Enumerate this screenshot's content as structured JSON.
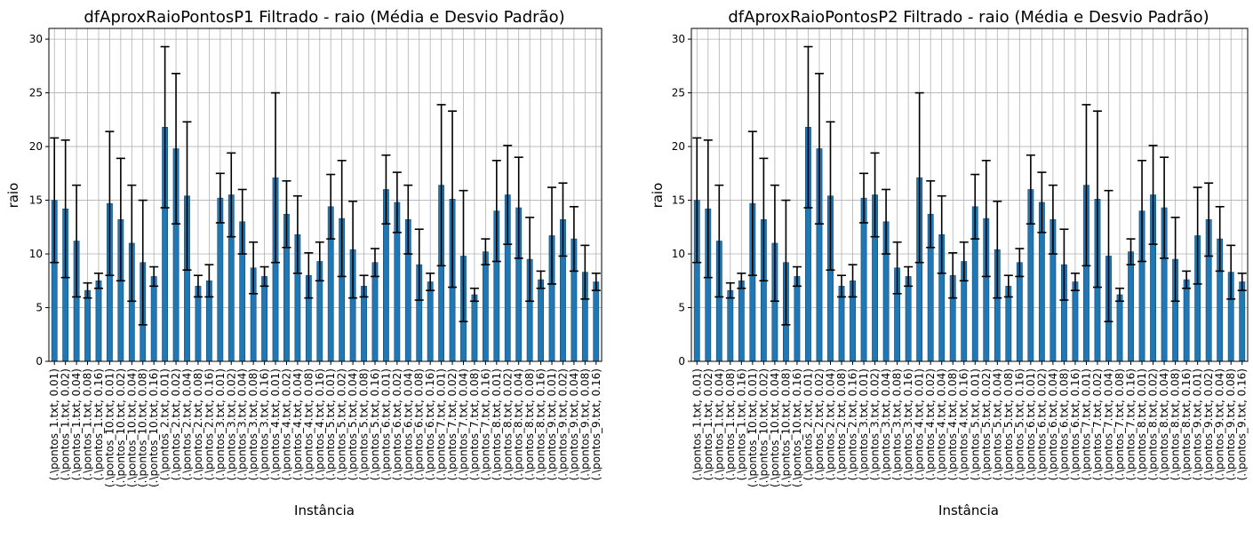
{
  "chart_data": [
    {
      "type": "bar",
      "title": "dfAproxRaioPontosP1 Filtrado - raio (Média e Desvio Padrão)",
      "xlabel": "Instância",
      "ylabel": "raio",
      "ylim": [
        0,
        31
      ],
      "yticks": [
        0,
        5,
        10,
        15,
        20,
        25,
        30
      ],
      "grid": true,
      "error_bars": true,
      "bar_color": "#1f77b4",
      "categories": [
        "(.\\pontos_1.txt, 0.01)",
        "(.\\pontos_1.txt, 0.02)",
        "(.\\pontos_1.txt, 0.04)",
        "(.\\pontos_1.txt, 0.08)",
        "(.\\pontos_1.txt, 0.16)",
        "(.\\pontos_10.txt, 0.01)",
        "(.\\pontos_10.txt, 0.02)",
        "(.\\pontos_10.txt, 0.04)",
        "(.\\pontos_10.txt, 0.08)",
        "(.\\pontos_10.txt, 0.16)",
        "(.\\pontos_2.txt, 0.01)",
        "(.\\pontos_2.txt, 0.02)",
        "(.\\pontos_2.txt, 0.04)",
        "(.\\pontos_2.txt, 0.08)",
        "(.\\pontos_2.txt, 0.16)",
        "(.\\pontos_3.txt, 0.01)",
        "(.\\pontos_3.txt, 0.02)",
        "(.\\pontos_3.txt, 0.04)",
        "(.\\pontos_3.txt, 0.08)",
        "(.\\pontos_3.txt, 0.16)",
        "(.\\pontos_4.txt, 0.01)",
        "(.\\pontos_4.txt, 0.02)",
        "(.\\pontos_4.txt, 0.04)",
        "(.\\pontos_4.txt, 0.08)",
        "(.\\pontos_4.txt, 0.16)",
        "(.\\pontos_5.txt, 0.01)",
        "(.\\pontos_5.txt, 0.02)",
        "(.\\pontos_5.txt, 0.04)",
        "(.\\pontos_5.txt, 0.08)",
        "(.\\pontos_5.txt, 0.16)",
        "(.\\pontos_6.txt, 0.01)",
        "(.\\pontos_6.txt, 0.02)",
        "(.\\pontos_6.txt, 0.04)",
        "(.\\pontos_6.txt, 0.08)",
        "(.\\pontos_6.txt, 0.16)",
        "(.\\pontos_7.txt, 0.01)",
        "(.\\pontos_7.txt, 0.02)",
        "(.\\pontos_7.txt, 0.04)",
        "(.\\pontos_7.txt, 0.08)",
        "(.\\pontos_7.txt, 0.16)",
        "(.\\pontos_8.txt, 0.01)",
        "(.\\pontos_8.txt, 0.02)",
        "(.\\pontos_8.txt, 0.04)",
        "(.\\pontos_8.txt, 0.08)",
        "(.\\pontos_8.txt, 0.16)",
        "(.\\pontos_9.txt, 0.01)",
        "(.\\pontos_9.txt, 0.02)",
        "(.\\pontos_9.txt, 0.04)",
        "(.\\pontos_9.txt, 0.08)",
        "(.\\pontos_9.txt, 0.16)"
      ],
      "values": [
        15.0,
        14.2,
        11.2,
        6.6,
        7.5,
        14.7,
        13.2,
        11.0,
        9.2,
        7.9,
        21.8,
        19.8,
        15.4,
        7.0,
        7.5,
        15.2,
        15.5,
        13.0,
        8.7,
        7.9,
        17.1,
        13.7,
        11.8,
        8.0,
        9.3,
        14.4,
        13.3,
        10.4,
        7.0,
        9.2,
        16.0,
        14.8,
        13.2,
        9.0,
        7.4,
        16.4,
        15.1,
        9.8,
        6.2,
        10.2,
        14.0,
        15.5,
        14.3,
        9.5,
        7.6,
        11.7,
        13.2,
        11.4,
        8.3,
        7.4
      ],
      "errors": [
        5.8,
        6.4,
        5.2,
        0.7,
        0.7,
        6.7,
        5.7,
        5.4,
        5.8,
        0.9,
        7.5,
        7.0,
        6.9,
        1.0,
        1.5,
        2.3,
        3.9,
        3.0,
        2.4,
        0.9,
        7.9,
        3.1,
        3.6,
        2.1,
        1.8,
        3.0,
        5.4,
        4.5,
        1.0,
        1.3,
        3.2,
        2.8,
        3.2,
        3.3,
        0.8,
        7.5,
        8.2,
        6.1,
        0.6,
        1.2,
        4.7,
        4.6,
        4.7,
        3.9,
        0.8,
        4.5,
        3.4,
        3.0,
        2.5,
        0.8
      ]
    },
    {
      "type": "bar",
      "title": "dfAproxRaioPontosP2 Filtrado - raio (Média e Desvio Padrão)",
      "xlabel": "Instância",
      "ylabel": "raio",
      "ylim": [
        0,
        31
      ],
      "yticks": [
        0,
        5,
        10,
        15,
        20,
        25,
        30
      ],
      "grid": true,
      "error_bars": true,
      "bar_color": "#1f77b4",
      "categories": [
        "(.\\pontos_1.txt, 0.01)",
        "(.\\pontos_1.txt, 0.02)",
        "(.\\pontos_1.txt, 0.04)",
        "(.\\pontos_1.txt, 0.08)",
        "(.\\pontos_1.txt, 0.16)",
        "(.\\pontos_10.txt, 0.01)",
        "(.\\pontos_10.txt, 0.02)",
        "(.\\pontos_10.txt, 0.04)",
        "(.\\pontos_10.txt, 0.08)",
        "(.\\pontos_10.txt, 0.16)",
        "(.\\pontos_2.txt, 0.01)",
        "(.\\pontos_2.txt, 0.02)",
        "(.\\pontos_2.txt, 0.04)",
        "(.\\pontos_2.txt, 0.08)",
        "(.\\pontos_2.txt, 0.16)",
        "(.\\pontos_3.txt, 0.01)",
        "(.\\pontos_3.txt, 0.02)",
        "(.\\pontos_3.txt, 0.04)",
        "(.\\pontos_3.txt, 0.08)",
        "(.\\pontos_3.txt, 0.16)",
        "(.\\pontos_4.txt, 0.01)",
        "(.\\pontos_4.txt, 0.02)",
        "(.\\pontos_4.txt, 0.04)",
        "(.\\pontos_4.txt, 0.08)",
        "(.\\pontos_4.txt, 0.16)",
        "(.\\pontos_5.txt, 0.01)",
        "(.\\pontos_5.txt, 0.02)",
        "(.\\pontos_5.txt, 0.04)",
        "(.\\pontos_5.txt, 0.08)",
        "(.\\pontos_5.txt, 0.16)",
        "(.\\pontos_6.txt, 0.01)",
        "(.\\pontos_6.txt, 0.02)",
        "(.\\pontos_6.txt, 0.04)",
        "(.\\pontos_6.txt, 0.08)",
        "(.\\pontos_6.txt, 0.16)",
        "(.\\pontos_7.txt, 0.01)",
        "(.\\pontos_7.txt, 0.02)",
        "(.\\pontos_7.txt, 0.04)",
        "(.\\pontos_7.txt, 0.08)",
        "(.\\pontos_7.txt, 0.16)",
        "(.\\pontos_8.txt, 0.01)",
        "(.\\pontos_8.txt, 0.02)",
        "(.\\pontos_8.txt, 0.04)",
        "(.\\pontos_8.txt, 0.08)",
        "(.\\pontos_8.txt, 0.16)",
        "(.\\pontos_9.txt, 0.01)",
        "(.\\pontos_9.txt, 0.02)",
        "(.\\pontos_9.txt, 0.04)",
        "(.\\pontos_9.txt, 0.08)",
        "(.\\pontos_9.txt, 0.16)"
      ],
      "values": [
        15.0,
        14.2,
        11.2,
        6.6,
        7.5,
        14.7,
        13.2,
        11.0,
        9.2,
        7.9,
        21.8,
        19.8,
        15.4,
        7.0,
        7.5,
        15.2,
        15.5,
        13.0,
        8.7,
        7.9,
        17.1,
        13.7,
        11.8,
        8.0,
        9.3,
        14.4,
        13.3,
        10.4,
        7.0,
        9.2,
        16.0,
        14.8,
        13.2,
        9.0,
        7.4,
        16.4,
        15.1,
        9.8,
        6.2,
        10.2,
        14.0,
        15.5,
        14.3,
        9.5,
        7.6,
        11.7,
        13.2,
        11.4,
        8.3,
        7.4
      ],
      "errors": [
        5.8,
        6.4,
        5.2,
        0.7,
        0.7,
        6.7,
        5.7,
        5.4,
        5.8,
        0.9,
        7.5,
        7.0,
        6.9,
        1.0,
        1.5,
        2.3,
        3.9,
        3.0,
        2.4,
        0.9,
        7.9,
        3.1,
        3.6,
        2.1,
        1.8,
        3.0,
        5.4,
        4.5,
        1.0,
        1.3,
        3.2,
        2.8,
        3.2,
        3.3,
        0.8,
        7.5,
        8.2,
        6.1,
        0.6,
        1.2,
        4.7,
        4.6,
        4.7,
        3.9,
        0.8,
        4.5,
        3.4,
        3.0,
        2.5,
        0.8
      ]
    }
  ]
}
